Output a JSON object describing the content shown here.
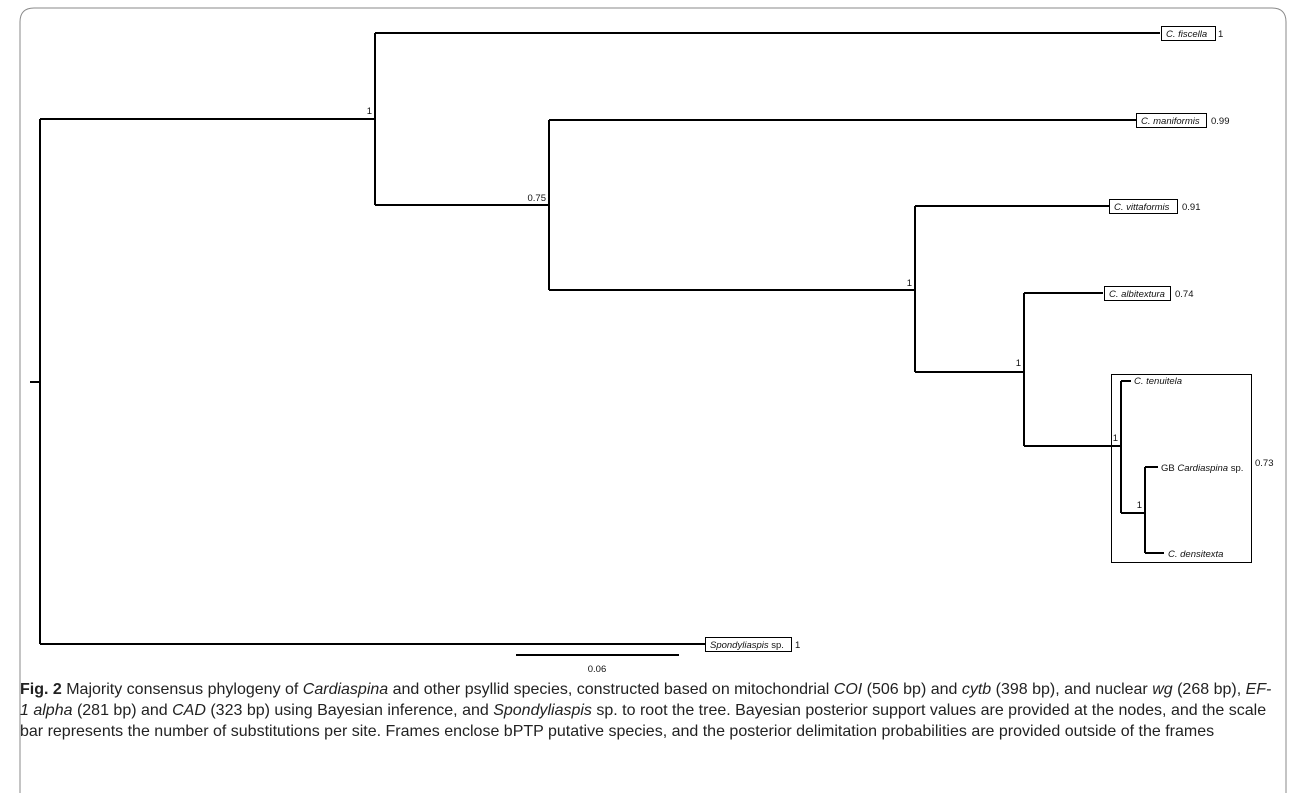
{
  "figure": {
    "leaves": {
      "c_fiscella": {
        "name": "C. fiscella",
        "prob": "1"
      },
      "c_maniformis": {
        "name": "C. maniformis",
        "prob": "0.99"
      },
      "c_vittaformis": {
        "name": "C. vittaformis",
        "prob": "0.91"
      },
      "c_albitextura": {
        "name": "C. albitextura",
        "prob": "0.74"
      },
      "c_tenuitela": {
        "name": "C. tenuitela"
      },
      "gb_cardiaspina": {
        "prefix": "GB",
        "name": "Cardiaspina",
        "suffix": "sp."
      },
      "c_densitexta": {
        "name": "C. densitexta"
      },
      "spondyliaspis": {
        "name": "Spondyliaspis",
        "suffix": "sp.",
        "prob": "1"
      }
    },
    "group_prob": "0.73",
    "node_support": {
      "n1": "1",
      "n2": "0.75",
      "n3": "1",
      "n4": "1",
      "n5": "1",
      "n6": "1"
    },
    "scale_label": "0.06"
  },
  "caption": {
    "fig_label": "Fig. 2",
    "segments": [
      {
        "t": " Majority consensus phylogeny of ",
        "i": false
      },
      {
        "t": "Cardiaspina",
        "i": true
      },
      {
        "t": " and other psyllid species, constructed based on mitochondrial ",
        "i": false
      },
      {
        "t": "COI",
        "i": true
      },
      {
        "t": " (506 bp) and ",
        "i": false
      },
      {
        "t": "cytb",
        "i": true
      },
      {
        "t": " (398 bp), and nuclear ",
        "i": false
      },
      {
        "t": "wg",
        "i": true
      },
      {
        "t": " (268 bp), ",
        "i": false
      },
      {
        "t": "EF-1 alpha",
        "i": true
      },
      {
        "t": " (281 bp) and ",
        "i": false
      },
      {
        "t": "CAD",
        "i": true
      },
      {
        "t": " (323 bp) using Bayesian inference, and ",
        "i": false
      },
      {
        "t": "Spondyliaspis",
        "i": true
      },
      {
        "t": " sp. to root the tree. Bayesian posterior support values are provided at the nodes, and the scale bar represents the number of substitutions per site. Frames enclose bPTP putative species, and the posterior delimitation probabilities are provided outside of the frames",
        "i": false
      }
    ]
  }
}
